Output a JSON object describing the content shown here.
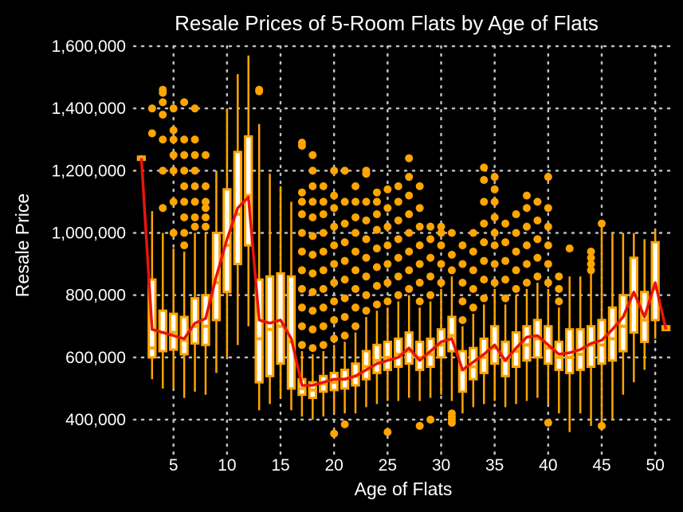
{
  "chart_data": {
    "type": "box",
    "title": "Resale Prices of 5-Room Flats by Age of Flats",
    "xlabel": "Age of Flats",
    "ylabel": "Resale Price",
    "xlim": [
      1.3,
      51.7
    ],
    "ylim": [
      290000,
      1600000
    ],
    "x_ticks": [
      5,
      10,
      15,
      20,
      25,
      30,
      35,
      40,
      45,
      50
    ],
    "x_tick_labels": [
      "5",
      "10",
      "15",
      "20",
      "25",
      "30",
      "35",
      "40",
      "45",
      "50"
    ],
    "y_ticks": [
      400000,
      600000,
      800000,
      1000000,
      1200000,
      1400000,
      1600000
    ],
    "y_tick_labels": [
      "400,000",
      "600,000",
      "800,000",
      "1,000,000",
      "1,200,000",
      "1,400,000",
      "1,600,000"
    ],
    "grid": true,
    "colors": {
      "box_fill": "#ffffff",
      "box_line": "#ffa500",
      "outlier": "#ffa500",
      "mean_line": "#e8140a",
      "background": "#000000",
      "grid": "#bdbdbd"
    },
    "boxes": [
      {
        "x": 2,
        "q1": 1235000,
        "median": 1240000,
        "q3": 1245000,
        "low": 1230000,
        "high": 1250000,
        "outliers": []
      },
      {
        "x": 3,
        "q1": 600000,
        "median": 630000,
        "q3": 850000,
        "low": 530000,
        "high": 1070000,
        "outliers": [
          1320000,
          1400000
        ]
      },
      {
        "x": 4,
        "q1": 620000,
        "median": 680000,
        "q3": 750000,
        "low": 500000,
        "high": 1000000,
        "outliers": [
          1080000,
          1200000,
          1300000,
          1380000,
          1420000,
          1450000,
          1460000
        ]
      },
      {
        "x": 5,
        "q1": 625000,
        "median": 680000,
        "q3": 740000,
        "low": 500000,
        "high": 950000,
        "outliers": [
          1000000,
          1100000,
          1200000,
          1250000,
          1300000,
          1330000,
          1400000
        ]
      },
      {
        "x": 6,
        "q1": 610000,
        "median": 655000,
        "q3": 730000,
        "low": 470000,
        "high": 940000,
        "outliers": [
          960000,
          1000000,
          1050000,
          1100000,
          1150000,
          1200000,
          1250000,
          1300000,
          1420000
        ]
      },
      {
        "x": 7,
        "q1": 645000,
        "median": 700000,
        "q3": 790000,
        "low": 490000,
        "high": 1000000,
        "outliers": [
          1020000,
          1050000,
          1100000,
          1150000,
          1200000,
          1250000,
          1300000,
          1400000
        ]
      },
      {
        "x": 8,
        "q1": 640000,
        "median": 700000,
        "q3": 800000,
        "low": 480000,
        "high": 1000000,
        "outliers": [
          1020000,
          1050000,
          1080000,
          1100000,
          1150000,
          1250000
        ]
      },
      {
        "x": 9,
        "q1": 720000,
        "median": 840000,
        "q3": 1000000,
        "low": 550000,
        "high": 1200000,
        "outliers": []
      },
      {
        "x": 10,
        "q1": 810000,
        "median": 960000,
        "q3": 1140000,
        "low": 600000,
        "high": 1400000,
        "outliers": []
      },
      {
        "x": 11,
        "q1": 900000,
        "median": 1060000,
        "q3": 1260000,
        "low": 640000,
        "high": 1510000,
        "outliers": []
      },
      {
        "x": 12,
        "q1": 960000,
        "median": 1120000,
        "q3": 1310000,
        "low": 700000,
        "high": 1570000,
        "outliers": []
      },
      {
        "x": 13,
        "q1": 520000,
        "median": 660000,
        "q3": 850000,
        "low": 430000,
        "high": 1350000,
        "outliers": [
          1455000,
          1460000
        ]
      },
      {
        "x": 14,
        "q1": 540000,
        "median": 690000,
        "q3": 860000,
        "low": 450000,
        "high": 1190000,
        "outliers": []
      },
      {
        "x": 15,
        "q1": 580000,
        "median": 700000,
        "q3": 870000,
        "low": 470000,
        "high": 1150000,
        "outliers": []
      },
      {
        "x": 16,
        "q1": 500000,
        "median": 650000,
        "q3": 860000,
        "low": 430000,
        "high": 1100000,
        "outliers": []
      },
      {
        "x": 17,
        "q1": 480000,
        "median": 500000,
        "q3": 530000,
        "low": 410000,
        "high": 620000,
        "outliers": [
          640000,
          700000,
          760000,
          820000,
          880000,
          940000,
          1000000,
          1060000,
          1100000,
          1130000,
          1280000,
          1290000
        ]
      },
      {
        "x": 18,
        "q1": 470000,
        "median": 495000,
        "q3": 520000,
        "low": 400000,
        "high": 610000,
        "outliers": [
          630000,
          690000,
          750000,
          810000,
          870000,
          930000,
          990000,
          1050000,
          1100000,
          1150000,
          1200000,
          1250000
        ]
      },
      {
        "x": 19,
        "q1": 490000,
        "median": 515000,
        "q3": 540000,
        "low": 410000,
        "high": 620000,
        "outliers": [
          640000,
          700000,
          760000,
          820000,
          880000,
          940000,
          1000000,
          1060000,
          1100000,
          1150000
        ]
      },
      {
        "x": 20,
        "q1": 495000,
        "median": 520000,
        "q3": 550000,
        "low": 420000,
        "high": 640000,
        "outliers": [
          355000,
          660000,
          720000,
          780000,
          840000,
          900000,
          960000,
          1020000,
          1080000,
          1120000,
          1200000
        ]
      },
      {
        "x": 21,
        "q1": 500000,
        "median": 530000,
        "q3": 560000,
        "low": 420000,
        "high": 650000,
        "outliers": [
          385000,
          670000,
          730000,
          790000,
          850000,
          910000,
          970000,
          1030000,
          1100000,
          1200000
        ]
      },
      {
        "x": 22,
        "q1": 510000,
        "median": 540000,
        "q3": 580000,
        "low": 420000,
        "high": 680000,
        "outliers": [
          700000,
          760000,
          820000,
          880000,
          940000,
          1000000,
          1050000,
          1100000,
          1150000
        ]
      },
      {
        "x": 23,
        "q1": 530000,
        "median": 570000,
        "q3": 620000,
        "low": 440000,
        "high": 730000,
        "outliers": [
          750000,
          800000,
          860000,
          920000,
          980000,
          1040000,
          1100000,
          1190000,
          1200000
        ]
      },
      {
        "x": 24,
        "q1": 550000,
        "median": 590000,
        "q3": 640000,
        "low": 450000,
        "high": 750000,
        "outliers": [
          770000,
          830000,
          890000,
          950000,
          1010000,
          1060000,
          1100000,
          1130000
        ]
      },
      {
        "x": 25,
        "q1": 560000,
        "median": 600000,
        "q3": 650000,
        "low": 460000,
        "high": 760000,
        "outliers": [
          360000,
          780000,
          840000,
          900000,
          960000,
          1020000,
          1080000,
          1140000
        ]
      },
      {
        "x": 26,
        "q1": 570000,
        "median": 610000,
        "q3": 660000,
        "low": 460000,
        "high": 780000,
        "outliers": [
          800000,
          860000,
          920000,
          980000,
          1040000,
          1100000,
          1150000
        ]
      },
      {
        "x": 27,
        "q1": 580000,
        "median": 620000,
        "q3": 680000,
        "low": 470000,
        "high": 800000,
        "outliers": [
          820000,
          880000,
          940000,
          1000000,
          1060000,
          1120000,
          1180000,
          1240000
        ]
      },
      {
        "x": 28,
        "q1": 560000,
        "median": 600000,
        "q3": 650000,
        "low": 460000,
        "high": 760000,
        "outliers": [
          380000,
          780000,
          840000,
          900000,
          960000,
          1020000,
          1080000,
          1150000
        ]
      },
      {
        "x": 29,
        "q1": 570000,
        "median": 610000,
        "q3": 660000,
        "low": 470000,
        "high": 780000,
        "outliers": [
          400000,
          800000,
          860000,
          920000,
          980000,
          1020000
        ]
      },
      {
        "x": 30,
        "q1": 600000,
        "median": 640000,
        "q3": 690000,
        "low": 480000,
        "high": 820000,
        "outliers": [
          840000,
          900000,
          960000,
          1000000,
          1020000
        ]
      },
      {
        "x": 31,
        "q1": 620000,
        "median": 670000,
        "q3": 730000,
        "low": 460000,
        "high": 860000,
        "outliers": [
          390000,
          400000,
          410000,
          420000,
          880000,
          930000,
          1000000
        ]
      },
      {
        "x": 32,
        "q1": 490000,
        "median": 560000,
        "q3": 620000,
        "low": 420000,
        "high": 700000,
        "outliers": [
          720000,
          780000,
          840000,
          900000,
          960000
        ]
      },
      {
        "x": 33,
        "q1": 530000,
        "median": 570000,
        "q3": 630000,
        "low": 440000,
        "high": 740000,
        "outliers": [
          760000,
          820000,
          880000,
          940000,
          1000000
        ]
      },
      {
        "x": 34,
        "q1": 550000,
        "median": 600000,
        "q3": 660000,
        "low": 450000,
        "high": 770000,
        "outliers": [
          790000,
          850000,
          910000,
          970000,
          1030000,
          1100000,
          1170000,
          1210000
        ]
      },
      {
        "x": 35,
        "q1": 580000,
        "median": 630000,
        "q3": 700000,
        "low": 460000,
        "high": 820000,
        "outliers": [
          840000,
          900000,
          960000,
          1000000,
          1050000,
          1100000,
          1140000,
          1180000
        ]
      },
      {
        "x": 36,
        "q1": 540000,
        "median": 590000,
        "q3": 650000,
        "low": 440000,
        "high": 770000,
        "outliers": [
          790000,
          850000,
          910000,
          970000,
          1030000
        ]
      },
      {
        "x": 37,
        "q1": 570000,
        "median": 620000,
        "q3": 680000,
        "low": 450000,
        "high": 800000,
        "outliers": [
          820000,
          880000,
          940000,
          1000000,
          1060000
        ]
      },
      {
        "x": 38,
        "q1": 590000,
        "median": 640000,
        "q3": 700000,
        "low": 460000,
        "high": 820000,
        "outliers": [
          840000,
          900000,
          960000,
          1020000,
          1080000,
          1120000
        ]
      },
      {
        "x": 39,
        "q1": 600000,
        "median": 660000,
        "q3": 720000,
        "low": 470000,
        "high": 840000,
        "outliers": [
          860000,
          920000,
          980000,
          1040000,
          1100000
        ]
      },
      {
        "x": 40,
        "q1": 580000,
        "median": 630000,
        "q3": 700000,
        "low": 450000,
        "high": 820000,
        "outliers": [
          390000,
          840000,
          900000,
          960000,
          1020000,
          1080000,
          1180000
        ]
      },
      {
        "x": 41,
        "q1": 560000,
        "median": 600000,
        "q3": 650000,
        "low": 420000,
        "high": 760000,
        "outliers": [
          780000,
          820000,
          860000
        ]
      },
      {
        "x": 42,
        "q1": 550000,
        "median": 600000,
        "q3": 690000,
        "low": 360000,
        "high": 860000,
        "outliers": [
          950000
        ]
      },
      {
        "x": 43,
        "q1": 560000,
        "median": 610000,
        "q3": 690000,
        "low": 420000,
        "high": 860000,
        "outliers": []
      },
      {
        "x": 44,
        "q1": 570000,
        "median": 640000,
        "q3": 700000,
        "low": 380000,
        "high": 880000,
        "outliers": [
          880000,
          900000,
          920000,
          940000
        ]
      },
      {
        "x": 45,
        "q1": 580000,
        "median": 640000,
        "q3": 720000,
        "low": 370000,
        "high": 1020000,
        "outliers": [
          380000,
          1030000
        ]
      },
      {
        "x": 46,
        "q1": 590000,
        "median": 660000,
        "q3": 760000,
        "low": 400000,
        "high": 1000000,
        "outliers": []
      },
      {
        "x": 47,
        "q1": 620000,
        "median": 700000,
        "q3": 800000,
        "low": 480000,
        "high": 1000000,
        "outliers": []
      },
      {
        "x": 48,
        "q1": 680000,
        "median": 800000,
        "q3": 920000,
        "low": 520000,
        "high": 1000000,
        "outliers": []
      },
      {
        "x": 49,
        "q1": 650000,
        "median": 720000,
        "q3": 810000,
        "low": 560000,
        "high": 980000,
        "outliers": []
      },
      {
        "x": 50,
        "q1": 720000,
        "median": 820000,
        "q3": 970000,
        "low": 660000,
        "high": 1010000,
        "outliers": []
      },
      {
        "x": 51,
        "q1": 688000,
        "median": 694000,
        "q3": 700000,
        "low": 685000,
        "high": 705000,
        "outliers": []
      }
    ],
    "mean_line": {
      "x": [
        2,
        3,
        4,
        5,
        6,
        7,
        8,
        9,
        10,
        11,
        12,
        13,
        14,
        15,
        16,
        17,
        18,
        19,
        20,
        21,
        22,
        23,
        24,
        25,
        26,
        27,
        28,
        29,
        30,
        31,
        32,
        33,
        34,
        35,
        36,
        37,
        38,
        39,
        40,
        41,
        42,
        43,
        44,
        45,
        46,
        47,
        48,
        49,
        50,
        51
      ],
      "y": [
        1240000,
        690000,
        680000,
        670000,
        660000,
        710000,
        725000,
        860000,
        980000,
        1080000,
        1115000,
        720000,
        710000,
        720000,
        660000,
        510000,
        510000,
        520000,
        530000,
        530000,
        540000,
        560000,
        580000,
        590000,
        600000,
        630000,
        590000,
        620000,
        650000,
        660000,
        560000,
        585000,
        610000,
        640000,
        590000,
        630000,
        665000,
        670000,
        640000,
        610000,
        615000,
        625000,
        645000,
        655000,
        690000,
        730000,
        810000,
        730000,
        840000,
        690000
      ]
    }
  }
}
